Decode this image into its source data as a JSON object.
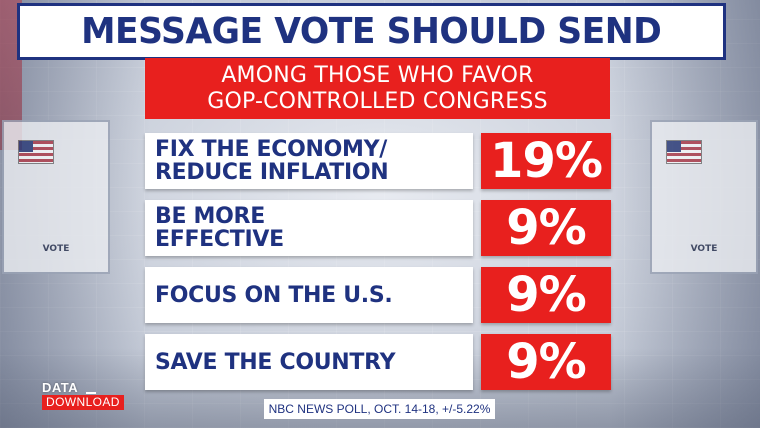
{
  "title": "MESSAGE VOTE SHOULD SEND",
  "subtitle": {
    "line1": "AMONG THOSE WHO FAVOR",
    "line2": "GOP-CONTROLLED CONGRESS"
  },
  "booth_label": "VOTE",
  "chart_data": {
    "type": "table",
    "title": "MESSAGE VOTE SHOULD SEND",
    "subtitle": "AMONG THOSE WHO FAVOR GOP-CONTROLLED CONGRESS",
    "rows": [
      {
        "label_lines": [
          "FIX THE ECONOMY/",
          "REDUCE INFLATION"
        ],
        "value": 19,
        "value_label": "19%"
      },
      {
        "label_lines": [
          "BE MORE",
          "EFFECTIVE"
        ],
        "value": 9,
        "value_label": "9%"
      },
      {
        "label_lines": [
          "FOCUS ON THE U.S."
        ],
        "value": 9,
        "value_label": "9%"
      },
      {
        "label_lines": [
          "SAVE THE COUNTRY"
        ],
        "value": 9,
        "value_label": "9%"
      }
    ],
    "unit": "%"
  },
  "logo": {
    "top": "DATA",
    "bottom": "DOWNLOAD"
  },
  "source": "NBC NEWS POLL, OCT. 14-18, +/-5.22%",
  "colors": {
    "navy": "#1f3280",
    "red": "#e8201e",
    "white": "#ffffff"
  }
}
